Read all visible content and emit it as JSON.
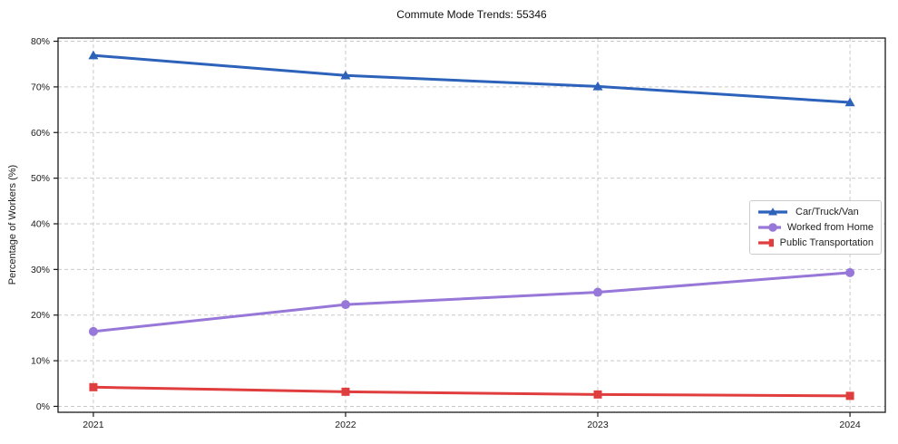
{
  "chart_data": {
    "type": "line",
    "title": "Commute Mode Trends: 55346",
    "xlabel": "",
    "ylabel": "Percentage of Workers (%)",
    "x": [
      2021,
      2022,
      2023,
      2024
    ],
    "series": [
      {
        "name": "Car/Truck/Van",
        "color": "#2c62ba",
        "marker": "triangle",
        "values": [
          76.9,
          72.5,
          70.1,
          66.6
        ]
      },
      {
        "name": "Worked from Home",
        "color": "#9777d8",
        "marker": "circle",
        "values": [
          16.4,
          22.3,
          25.0,
          29.3
        ]
      },
      {
        "name": "Public Transportation",
        "color": "#e03e3e",
        "marker": "square",
        "values": [
          4.2,
          3.2,
          2.6,
          2.3
        ]
      }
    ],
    "ylim": [
      0,
      80
    ],
    "yticks": [
      0,
      10,
      20,
      30,
      40,
      50,
      60,
      70,
      80
    ],
    "grid": true,
    "grid_style": "dashed",
    "legend_position": "center-right"
  },
  "axes": {
    "x_tick_labels": [
      "2021",
      "2022",
      "2023",
      "2024"
    ],
    "y_tick_labels": [
      "0%",
      "10%",
      "20%",
      "30%",
      "40%",
      "50%",
      "60%",
      "70%",
      "80%"
    ]
  },
  "colors": {
    "gridline": "#c9c9c9",
    "frame": "#1a1a1a",
    "text": "#1a1a1a",
    "background": "#ffffff"
  }
}
